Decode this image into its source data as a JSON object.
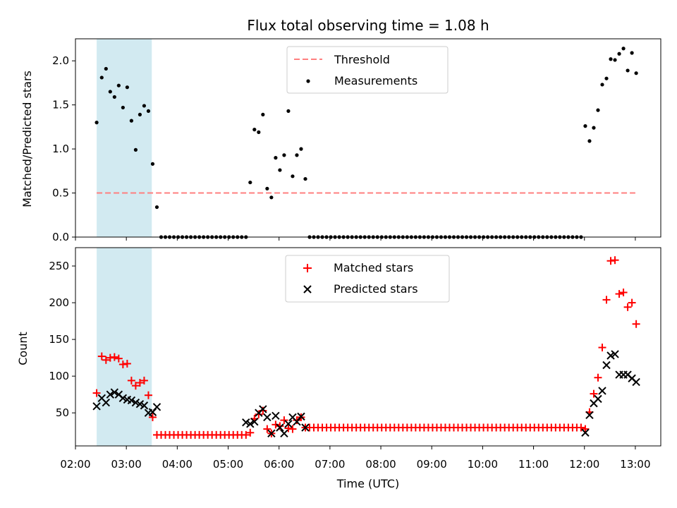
{
  "chart_data": [
    {
      "type": "scatter",
      "title": "Flux total observing time = 1.08 h",
      "xlabel": "",
      "ylabel": "Matched/Predicted stars",
      "xlim": [
        "02:00",
        "13:30"
      ],
      "ylim": [
        0,
        2.25
      ],
      "yticks": [
        0.0,
        0.5,
        1.0,
        1.5,
        2.0
      ],
      "ytick_labels": [
        "0.0",
        "0.5",
        "1.0",
        "1.5",
        "2.0"
      ],
      "legend_position": "upper center",
      "shaded_span": {
        "start": "02:25",
        "end": "03:30",
        "color": "#add8e6"
      },
      "legend": [
        {
          "label": "Threshold",
          "style": "dashed-line",
          "color": "#ff7f7f"
        },
        {
          "label": "Measurements",
          "style": "dot",
          "color": "#000000"
        }
      ],
      "threshold": {
        "value": 0.5,
        "start": "02:25",
        "end": "13:00",
        "color": "#ff7f7f"
      },
      "series": [
        {
          "name": "Measurements",
          "color": "#000000",
          "x": [
            "02:25",
            "02:31",
            "02:36",
            "02:41",
            "02:46",
            "02:51",
            "02:56",
            "03:01",
            "03:06",
            "03:11",
            "03:16",
            "03:21",
            "03:26",
            "03:31",
            "03:36",
            "03:41",
            "03:46",
            "03:51",
            "03:56",
            "04:01",
            "04:06",
            "04:11",
            "04:16",
            "04:21",
            "04:26",
            "04:31",
            "04:36",
            "04:41",
            "04:46",
            "04:51",
            "04:56",
            "05:01",
            "05:06",
            "05:11",
            "05:16",
            "05:21",
            "05:26",
            "05:31",
            "05:36",
            "05:41",
            "05:46",
            "05:51",
            "05:56",
            "06:01",
            "06:06",
            "06:11",
            "06:16",
            "06:21",
            "06:26",
            "06:31",
            "06:36",
            "06:41",
            "06:46",
            "06:51",
            "06:56",
            "07:01",
            "07:06",
            "07:11",
            "07:16",
            "07:21",
            "07:26",
            "07:31",
            "07:36",
            "07:41",
            "07:46",
            "07:51",
            "07:56",
            "08:01",
            "08:06",
            "08:11",
            "08:16",
            "08:21",
            "08:26",
            "08:31",
            "08:36",
            "08:41",
            "08:46",
            "08:51",
            "08:56",
            "09:01",
            "09:06",
            "09:11",
            "09:16",
            "09:21",
            "09:26",
            "09:31",
            "09:36",
            "09:41",
            "09:46",
            "09:51",
            "09:56",
            "10:01",
            "10:06",
            "10:11",
            "10:16",
            "10:21",
            "10:26",
            "10:31",
            "10:36",
            "10:41",
            "10:46",
            "10:51",
            "10:56",
            "11:01",
            "11:06",
            "11:11",
            "11:16",
            "11:21",
            "11:26",
            "11:31",
            "11:36",
            "11:41",
            "11:46",
            "11:51",
            "11:56",
            "12:01",
            "12:06",
            "12:11",
            "12:16",
            "12:21",
            "12:26",
            "12:31",
            "12:36",
            "12:41",
            "12:46",
            "12:51",
            "12:56",
            "13:01"
          ],
          "y": [
            1.3,
            1.81,
            1.91,
            1.65,
            1.59,
            1.72,
            1.47,
            1.7,
            1.32,
            0.99,
            1.39,
            1.49,
            1.43,
            0.83,
            0.34,
            0,
            0,
            0,
            0,
            0,
            0,
            0,
            0,
            0,
            0,
            0,
            0,
            0,
            0,
            0,
            0,
            0,
            0,
            0,
            0,
            0,
            0.62,
            1.22,
            1.19,
            1.39,
            0.55,
            0.45,
            0.9,
            0.76,
            0.93,
            1.43,
            0.69,
            0.93,
            1.0,
            0.66,
            0,
            0,
            0,
            0,
            0,
            0,
            0,
            0,
            0,
            0,
            0,
            0,
            0,
            0,
            0,
            0,
            0,
            0,
            0,
            0,
            0,
            0,
            0,
            0,
            0,
            0,
            0,
            0,
            0,
            0,
            0,
            0,
            0,
            0,
            0,
            0,
            0,
            0,
            0,
            0,
            0,
            0,
            0,
            0,
            0,
            0,
            0,
            0,
            0,
            0,
            0,
            0,
            0,
            0,
            0,
            0,
            0,
            0,
            0,
            0,
            0,
            0,
            0,
            0,
            0,
            1.26,
            1.09,
            1.24,
            1.44,
            1.73,
            1.8,
            2.02,
            2.01,
            2.08,
            2.14,
            1.89,
            2.09,
            1.86
          ]
        }
      ]
    },
    {
      "type": "scatter",
      "title": "",
      "xlabel": "Time (UTC)",
      "ylabel": "Count",
      "xlim": [
        "02:00",
        "13:30"
      ],
      "ylim": [
        5,
        275
      ],
      "xtick_labels": [
        "02:00",
        "03:00",
        "04:00",
        "05:00",
        "06:00",
        "07:00",
        "08:00",
        "09:00",
        "10:00",
        "11:00",
        "12:00",
        "13:00"
      ],
      "yticks": [
        50,
        100,
        150,
        200,
        250
      ],
      "ytick_labels": [
        "50",
        "100",
        "150",
        "200",
        "250"
      ],
      "legend_position": "upper center",
      "shaded_span": {
        "start": "02:25",
        "end": "03:30",
        "color": "#add8e6"
      },
      "legend": [
        {
          "label": "Matched stars",
          "style": "plus",
          "color": "#ff0000"
        },
        {
          "label": "Predicted stars",
          "style": "x",
          "color": "#000000"
        }
      ],
      "series": [
        {
          "name": "Matched stars",
          "color": "#ff0000",
          "x": [
            "02:25",
            "02:31",
            "02:36",
            "02:41",
            "02:46",
            "02:51",
            "02:56",
            "03:01",
            "03:06",
            "03:11",
            "03:16",
            "03:21",
            "03:26",
            "03:31",
            "03:36",
            "03:41",
            "03:46",
            "03:51",
            "03:56",
            "04:01",
            "04:06",
            "04:11",
            "04:16",
            "04:21",
            "04:26",
            "04:31",
            "04:36",
            "04:41",
            "04:46",
            "04:51",
            "04:56",
            "05:01",
            "05:06",
            "05:11",
            "05:16",
            "05:21",
            "05:26",
            "05:31",
            "05:36",
            "05:41",
            "05:46",
            "05:51",
            "05:56",
            "06:01",
            "06:06",
            "06:11",
            "06:16",
            "06:21",
            "06:26",
            "06:31",
            "06:36",
            "06:41",
            "06:46",
            "06:51",
            "06:56",
            "07:01",
            "07:06",
            "07:11",
            "07:16",
            "07:21",
            "07:26",
            "07:31",
            "07:36",
            "07:41",
            "07:46",
            "07:51",
            "07:56",
            "08:01",
            "08:06",
            "08:11",
            "08:16",
            "08:21",
            "08:26",
            "08:31",
            "08:36",
            "08:41",
            "08:46",
            "08:51",
            "08:56",
            "09:01",
            "09:06",
            "09:11",
            "09:16",
            "09:21",
            "09:26",
            "09:31",
            "09:36",
            "09:41",
            "09:46",
            "09:51",
            "09:56",
            "10:01",
            "10:06",
            "10:11",
            "10:16",
            "10:21",
            "10:26",
            "10:31",
            "10:36",
            "10:41",
            "10:46",
            "10:51",
            "10:56",
            "11:01",
            "11:06",
            "11:11",
            "11:16",
            "11:21",
            "11:26",
            "11:31",
            "11:36",
            "11:41",
            "11:46",
            "11:51",
            "11:56",
            "12:01",
            "12:06",
            "12:11",
            "12:16",
            "12:21",
            "12:26",
            "12:31",
            "12:36",
            "12:41",
            "12:46",
            "12:51",
            "12:56",
            "13:01"
          ],
          "y": [
            77,
            127,
            122,
            125,
            126,
            124,
            116,
            117,
            94,
            87,
            91,
            94,
            74,
            44,
            20,
            20,
            20,
            20,
            20,
            20,
            20,
            20,
            20,
            20,
            20,
            20,
            20,
            20,
            20,
            20,
            20,
            20,
            20,
            20,
            20,
            20,
            23,
            42,
            48,
            53,
            28,
            22,
            34,
            32,
            40,
            29,
            28,
            40,
            44,
            30,
            30,
            30,
            30,
            30,
            30,
            30,
            30,
            30,
            30,
            30,
            30,
            30,
            30,
            30,
            30,
            30,
            30,
            30,
            30,
            30,
            30,
            30,
            30,
            30,
            30,
            30,
            30,
            30,
            30,
            30,
            30,
            30,
            30,
            30,
            30,
            30,
            30,
            30,
            30,
            30,
            30,
            30,
            30,
            30,
            30,
            30,
            30,
            30,
            30,
            30,
            30,
            30,
            30,
            30,
            30,
            30,
            30,
            30,
            30,
            30,
            30,
            30,
            30,
            30,
            30,
            28,
            51,
            76,
            98,
            139,
            204,
            257,
            258,
            212,
            214,
            194,
            200,
            171
          ]
        },
        {
          "name": "Predicted stars",
          "color": "#000000",
          "x": [
            "02:25",
            "02:31",
            "02:36",
            "02:41",
            "02:46",
            "02:51",
            "02:56",
            "03:01",
            "03:06",
            "03:11",
            "03:16",
            "03:21",
            "03:26",
            "03:31",
            "03:36",
            "05:21",
            "05:26",
            "05:31",
            "05:36",
            "05:41",
            "05:46",
            "05:51",
            "05:56",
            "06:01",
            "06:06",
            "06:11",
            "06:16",
            "06:21",
            "06:26",
            "06:31",
            "12:01",
            "12:06",
            "12:11",
            "12:16",
            "12:21",
            "12:26",
            "12:31",
            "12:36",
            "12:41",
            "12:46",
            "12:51",
            "12:56",
            "13:01"
          ],
          "y": [
            59,
            70,
            64,
            75,
            78,
            75,
            70,
            68,
            67,
            64,
            62,
            60,
            50,
            51,
            58,
            37,
            35,
            38,
            50,
            55,
            44,
            22,
            46,
            30,
            22,
            35,
            44,
            38,
            45,
            30,
            23,
            47,
            63,
            69,
            80,
            115,
            128,
            130,
            102,
            102,
            102,
            97,
            92
          ]
        }
      ]
    }
  ]
}
